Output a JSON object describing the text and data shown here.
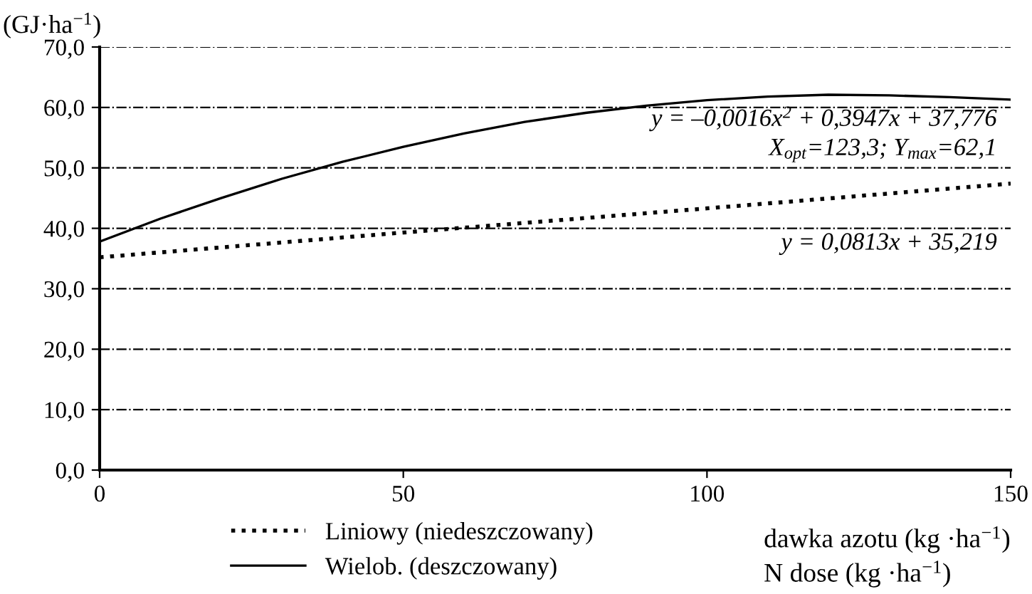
{
  "chart_data": {
    "type": "line",
    "ylabel": "(GJ·ha$^{−1}$)",
    "xlabel": "dawka azotu (kg ·ha$^{−1}$)\nN dose (kg ·ha$^{−1}$)",
    "xlim": [
      0,
      150
    ],
    "xticks": [
      0,
      50,
      100,
      150
    ],
    "ylim": [
      0,
      70
    ],
    "yticks": [
      {
        "value": 0,
        "label": "0,0"
      },
      {
        "value": 10,
        "label": "10,0"
      },
      {
        "value": 20,
        "label": "20,0"
      },
      {
        "value": 30,
        "label": "30,0"
      },
      {
        "value": 40,
        "label": "40,0"
      },
      {
        "value": 50,
        "label": "50,0"
      },
      {
        "value": 60,
        "label": "60,0"
      },
      {
        "value": 70,
        "label": "70,0"
      }
    ],
    "grid": "y",
    "legend": "bottom left",
    "marker": "none",
    "series": [
      {
        "name": "Liniowy (niedeszczowany)",
        "color": "#000000",
        "line_style": "dotted",
        "x": [
          0,
          50,
          100,
          150
        ],
        "values": [
          35.2,
          39.3,
          43.3,
          47.4
        ]
      },
      {
        "name": "Wielob. (deszczowany)",
        "color": "#000000",
        "line_style": "solid",
        "x": [
          0,
          10,
          20,
          30,
          40,
          50,
          60,
          70,
          80,
          90,
          100,
          110,
          120,
          130,
          140,
          150
        ],
        "values": [
          37.8,
          41.6,
          45.0,
          48.2,
          51.0,
          53.5,
          55.7,
          57.6,
          59.1,
          60.3,
          61.2,
          61.8,
          62.1,
          62.0,
          61.7,
          61.3
        ]
      }
    ],
    "annotations": [
      "y = –0,0016x$^{2}$ + 0,3947x + 37,776",
      "X$_{opt}$=123,3; Y$_{max}$=62,1",
      "y = 0,0813x + 35,219"
    ]
  }
}
